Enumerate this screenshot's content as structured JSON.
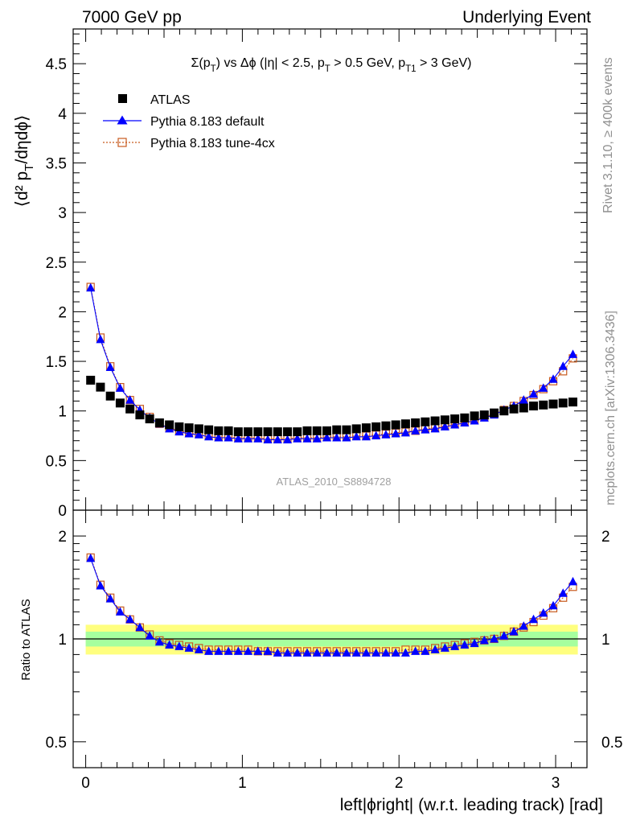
{
  "header": {
    "left": "7000 GeV pp",
    "right": "Underlying Event"
  },
  "side_text": {
    "rivet": "Rivet 3.1.10, ≥ 400k events",
    "mcplots": "mcplots.cern.ch [arXiv:1306.3436]"
  },
  "watermark": "ATLAS_2010_S8894728",
  "plot_title": "Σ(p_T) vs Δϕ (|η| < 2.5, p_T > 0.5 GeV, p_T1 > 3 GeV)",
  "legend": [
    {
      "label": "ATLAS",
      "marker": "square-filled",
      "color": "#000000"
    },
    {
      "label": "Pythia 8.183 default",
      "marker": "triangle-filled",
      "color": "#0000ff"
    },
    {
      "label": "Pythia 8.183 tune-4cx",
      "marker": "square-open",
      "color": "#c85a1e"
    }
  ],
  "chart_data": [
    {
      "type": "scatter",
      "panel": "main",
      "ylabel": "⟨d² p_T/dηdϕ⟩",
      "xlim": [
        -0.08,
        3.2
      ],
      "ylim": [
        0,
        4.85
      ],
      "y_ticks": [
        0,
        0.5,
        1,
        1.5,
        2,
        2.5,
        3,
        3.5,
        4,
        4.5
      ],
      "y_tick_labels": [
        "0",
        "0.5",
        "1",
        "1.5",
        "2",
        "2.5",
        "3",
        "3.5",
        "4",
        "4.5"
      ],
      "x": [
        0.0314,
        0.0942,
        0.1571,
        0.2199,
        0.2827,
        0.3456,
        0.4084,
        0.4712,
        0.5341,
        0.5969,
        0.6597,
        0.7226,
        0.7854,
        0.8482,
        0.9111,
        0.9739,
        1.0367,
        1.0996,
        1.1624,
        1.2252,
        1.2881,
        1.3509,
        1.4137,
        1.4765,
        1.5394,
        1.6022,
        1.665,
        1.7279,
        1.7907,
        1.8535,
        1.9164,
        1.9792,
        2.042,
        2.1049,
        2.1677,
        2.2305,
        2.2934,
        2.3562,
        2.419,
        2.4819,
        2.5447,
        2.6075,
        2.6704,
        2.7332,
        2.796,
        2.8588,
        2.9217,
        2.9845,
        3.0473,
        3.1102
      ],
      "series": [
        {
          "name": "ATLAS",
          "values": [
            1.31,
            1.24,
            1.15,
            1.08,
            1.02,
            0.96,
            0.92,
            0.88,
            0.86,
            0.84,
            0.83,
            0.82,
            0.81,
            0.8,
            0.8,
            0.79,
            0.79,
            0.79,
            0.79,
            0.79,
            0.79,
            0.79,
            0.8,
            0.8,
            0.8,
            0.81,
            0.81,
            0.82,
            0.83,
            0.84,
            0.85,
            0.86,
            0.87,
            0.88,
            0.89,
            0.9,
            0.91,
            0.92,
            0.93,
            0.95,
            0.96,
            0.98,
            1.0,
            1.02,
            1.03,
            1.05,
            1.06,
            1.07,
            1.08,
            1.09
          ]
        },
        {
          "name": "Pythia 8.183 default",
          "values": [
            2.24,
            1.72,
            1.44,
            1.23,
            1.11,
            1.01,
            0.93,
            0.87,
            0.82,
            0.79,
            0.77,
            0.76,
            0.74,
            0.73,
            0.73,
            0.72,
            0.72,
            0.72,
            0.71,
            0.71,
            0.71,
            0.72,
            0.72,
            0.72,
            0.73,
            0.73,
            0.73,
            0.74,
            0.74,
            0.75,
            0.76,
            0.77,
            0.78,
            0.8,
            0.81,
            0.82,
            0.84,
            0.86,
            0.88,
            0.9,
            0.93,
            0.96,
            1.01,
            1.05,
            1.11,
            1.17,
            1.23,
            1.32,
            1.45,
            1.57
          ]
        },
        {
          "name": "Pythia 8.183 tune-4cx",
          "values": [
            2.25,
            1.74,
            1.45,
            1.24,
            1.11,
            1.02,
            0.94,
            0.87,
            0.83,
            0.8,
            0.78,
            0.77,
            0.75,
            0.74,
            0.74,
            0.73,
            0.73,
            0.73,
            0.72,
            0.72,
            0.72,
            0.73,
            0.73,
            0.73,
            0.74,
            0.74,
            0.74,
            0.75,
            0.75,
            0.76,
            0.77,
            0.78,
            0.79,
            0.8,
            0.82,
            0.83,
            0.85,
            0.87,
            0.89,
            0.91,
            0.94,
            0.97,
            1.01,
            1.05,
            1.1,
            1.16,
            1.22,
            1.3,
            1.4,
            1.53
          ]
        }
      ]
    },
    {
      "type": "scatter",
      "panel": "ratio",
      "xlabel": "left|ϕright| (w.r.t. leading track) [rad]",
      "ylabel": "Ratio to ATLAS",
      "xlim": [
        -0.08,
        3.2
      ],
      "ylim": [
        0.42,
        2.38
      ],
      "yscale": "log",
      "x_ticks": [
        0,
        1,
        2,
        3
      ],
      "x_tick_labels": [
        "0",
        "1",
        "2",
        "3"
      ],
      "y_ticks": [
        0.5,
        1,
        2
      ],
      "y_tick_labels": [
        "0.5",
        "1",
        "2"
      ],
      "uncertainty_bands": [
        {
          "name": "total",
          "lo": 0.9,
          "hi": 1.1,
          "color": "#ffff7f"
        },
        {
          "name": "stat",
          "lo": 0.95,
          "hi": 1.05,
          "color": "#a6ff9e"
        }
      ],
      "x": [
        0.0314,
        0.0942,
        0.1571,
        0.2199,
        0.2827,
        0.3456,
        0.4084,
        0.4712,
        0.5341,
        0.5969,
        0.6597,
        0.7226,
        0.7854,
        0.8482,
        0.9111,
        0.9739,
        1.0367,
        1.0996,
        1.1624,
        1.2252,
        1.2881,
        1.3509,
        1.4137,
        1.4765,
        1.5394,
        1.6022,
        1.665,
        1.7279,
        1.7907,
        1.8535,
        1.9164,
        1.9792,
        2.042,
        2.1049,
        2.1677,
        2.2305,
        2.2934,
        2.3562,
        2.419,
        2.4819,
        2.5447,
        2.6075,
        2.6704,
        2.7332,
        2.796,
        2.8588,
        2.9217,
        2.9845,
        3.0473,
        3.1102
      ],
      "series": [
        {
          "name": "Pythia 8.183 default",
          "values": [
            1.72,
            1.43,
            1.31,
            1.2,
            1.14,
            1.08,
            1.02,
            0.98,
            0.96,
            0.95,
            0.94,
            0.93,
            0.92,
            0.92,
            0.92,
            0.92,
            0.92,
            0.92,
            0.92,
            0.91,
            0.91,
            0.91,
            0.91,
            0.91,
            0.91,
            0.91,
            0.91,
            0.91,
            0.91,
            0.91,
            0.91,
            0.91,
            0.91,
            0.92,
            0.92,
            0.93,
            0.94,
            0.95,
            0.96,
            0.97,
            0.99,
            1.0,
            1.02,
            1.05,
            1.09,
            1.14,
            1.19,
            1.25,
            1.36,
            1.47
          ]
        },
        {
          "name": "Pythia 8.183 tune-4cx",
          "values": [
            1.73,
            1.44,
            1.32,
            1.21,
            1.14,
            1.08,
            1.03,
            0.99,
            0.97,
            0.96,
            0.95,
            0.94,
            0.93,
            0.93,
            0.93,
            0.93,
            0.93,
            0.92,
            0.92,
            0.92,
            0.92,
            0.92,
            0.92,
            0.92,
            0.92,
            0.92,
            0.92,
            0.92,
            0.92,
            0.92,
            0.92,
            0.92,
            0.93,
            0.93,
            0.93,
            0.94,
            0.95,
            0.96,
            0.97,
            0.98,
            0.99,
            1.0,
            1.02,
            1.05,
            1.08,
            1.12,
            1.17,
            1.23,
            1.32,
            1.42
          ]
        }
      ]
    }
  ]
}
